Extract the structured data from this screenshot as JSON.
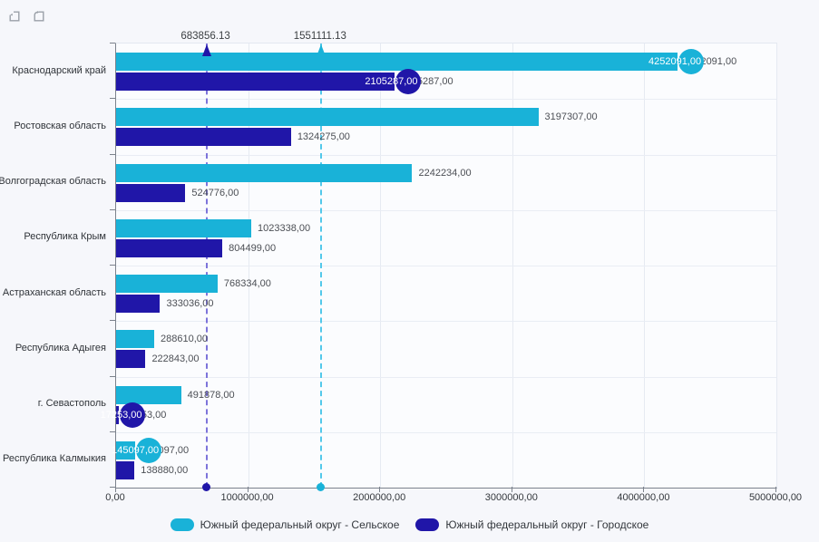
{
  "toolbar": {
    "buttons": [
      {
        "icon": "undo-square-icon"
      },
      {
        "icon": "redo-square-icon"
      }
    ]
  },
  "chart_data": {
    "type": "bar",
    "orientation": "horizontal",
    "title": "",
    "categories": [
      "Краснодарский край",
      "Ростовская область",
      "Волгоградская область",
      "Республика Крым",
      "Астраханская область",
      "Республика Адыгея",
      "г. Севастополь",
      "Республика Калмыкия"
    ],
    "series": [
      {
        "name": "Южный федеральный округ - Сельское",
        "color": "#19b2d8",
        "values": [
          4252091,
          3197307,
          2242234,
          1023338,
          768334,
          288610,
          491878,
          145097
        ],
        "value_labels": [
          "4252091,00",
          "3197307,00",
          "2242234,00",
          "1023338,00",
          "768334,00",
          "288610,00",
          "491878,00",
          "145097,00"
        ],
        "highlighted_points": [
          0,
          7
        ],
        "average_line": {
          "value": 1551111.13,
          "label": "1551111.13",
          "line_color": "#53c8ea"
        }
      },
      {
        "name": "Южный федеральный округ - Городское",
        "color": "#2016a8",
        "values": [
          2105287,
          1324275,
          524776,
          804499,
          333036,
          222843,
          17253,
          138880
        ],
        "value_labels": [
          "2105287,00",
          "1324275,00",
          "524776,00",
          "804499,00",
          "333036,00",
          "222843,00",
          "17253,00",
          "138880,00"
        ],
        "highlighted_points": [
          0,
          6
        ],
        "average_line": {
          "value": 683856.13,
          "label": "683856.13",
          "line_color": "#7d74da"
        }
      }
    ],
    "x_axis": {
      "min": 0,
      "max": 5000000,
      "tick_labels": [
        "0,00",
        "1000000,00",
        "2000000,00",
        "3000000,00",
        "4000000,00",
        "5000000,00"
      ],
      "grid": true
    },
    "legend_position": "bottom"
  }
}
